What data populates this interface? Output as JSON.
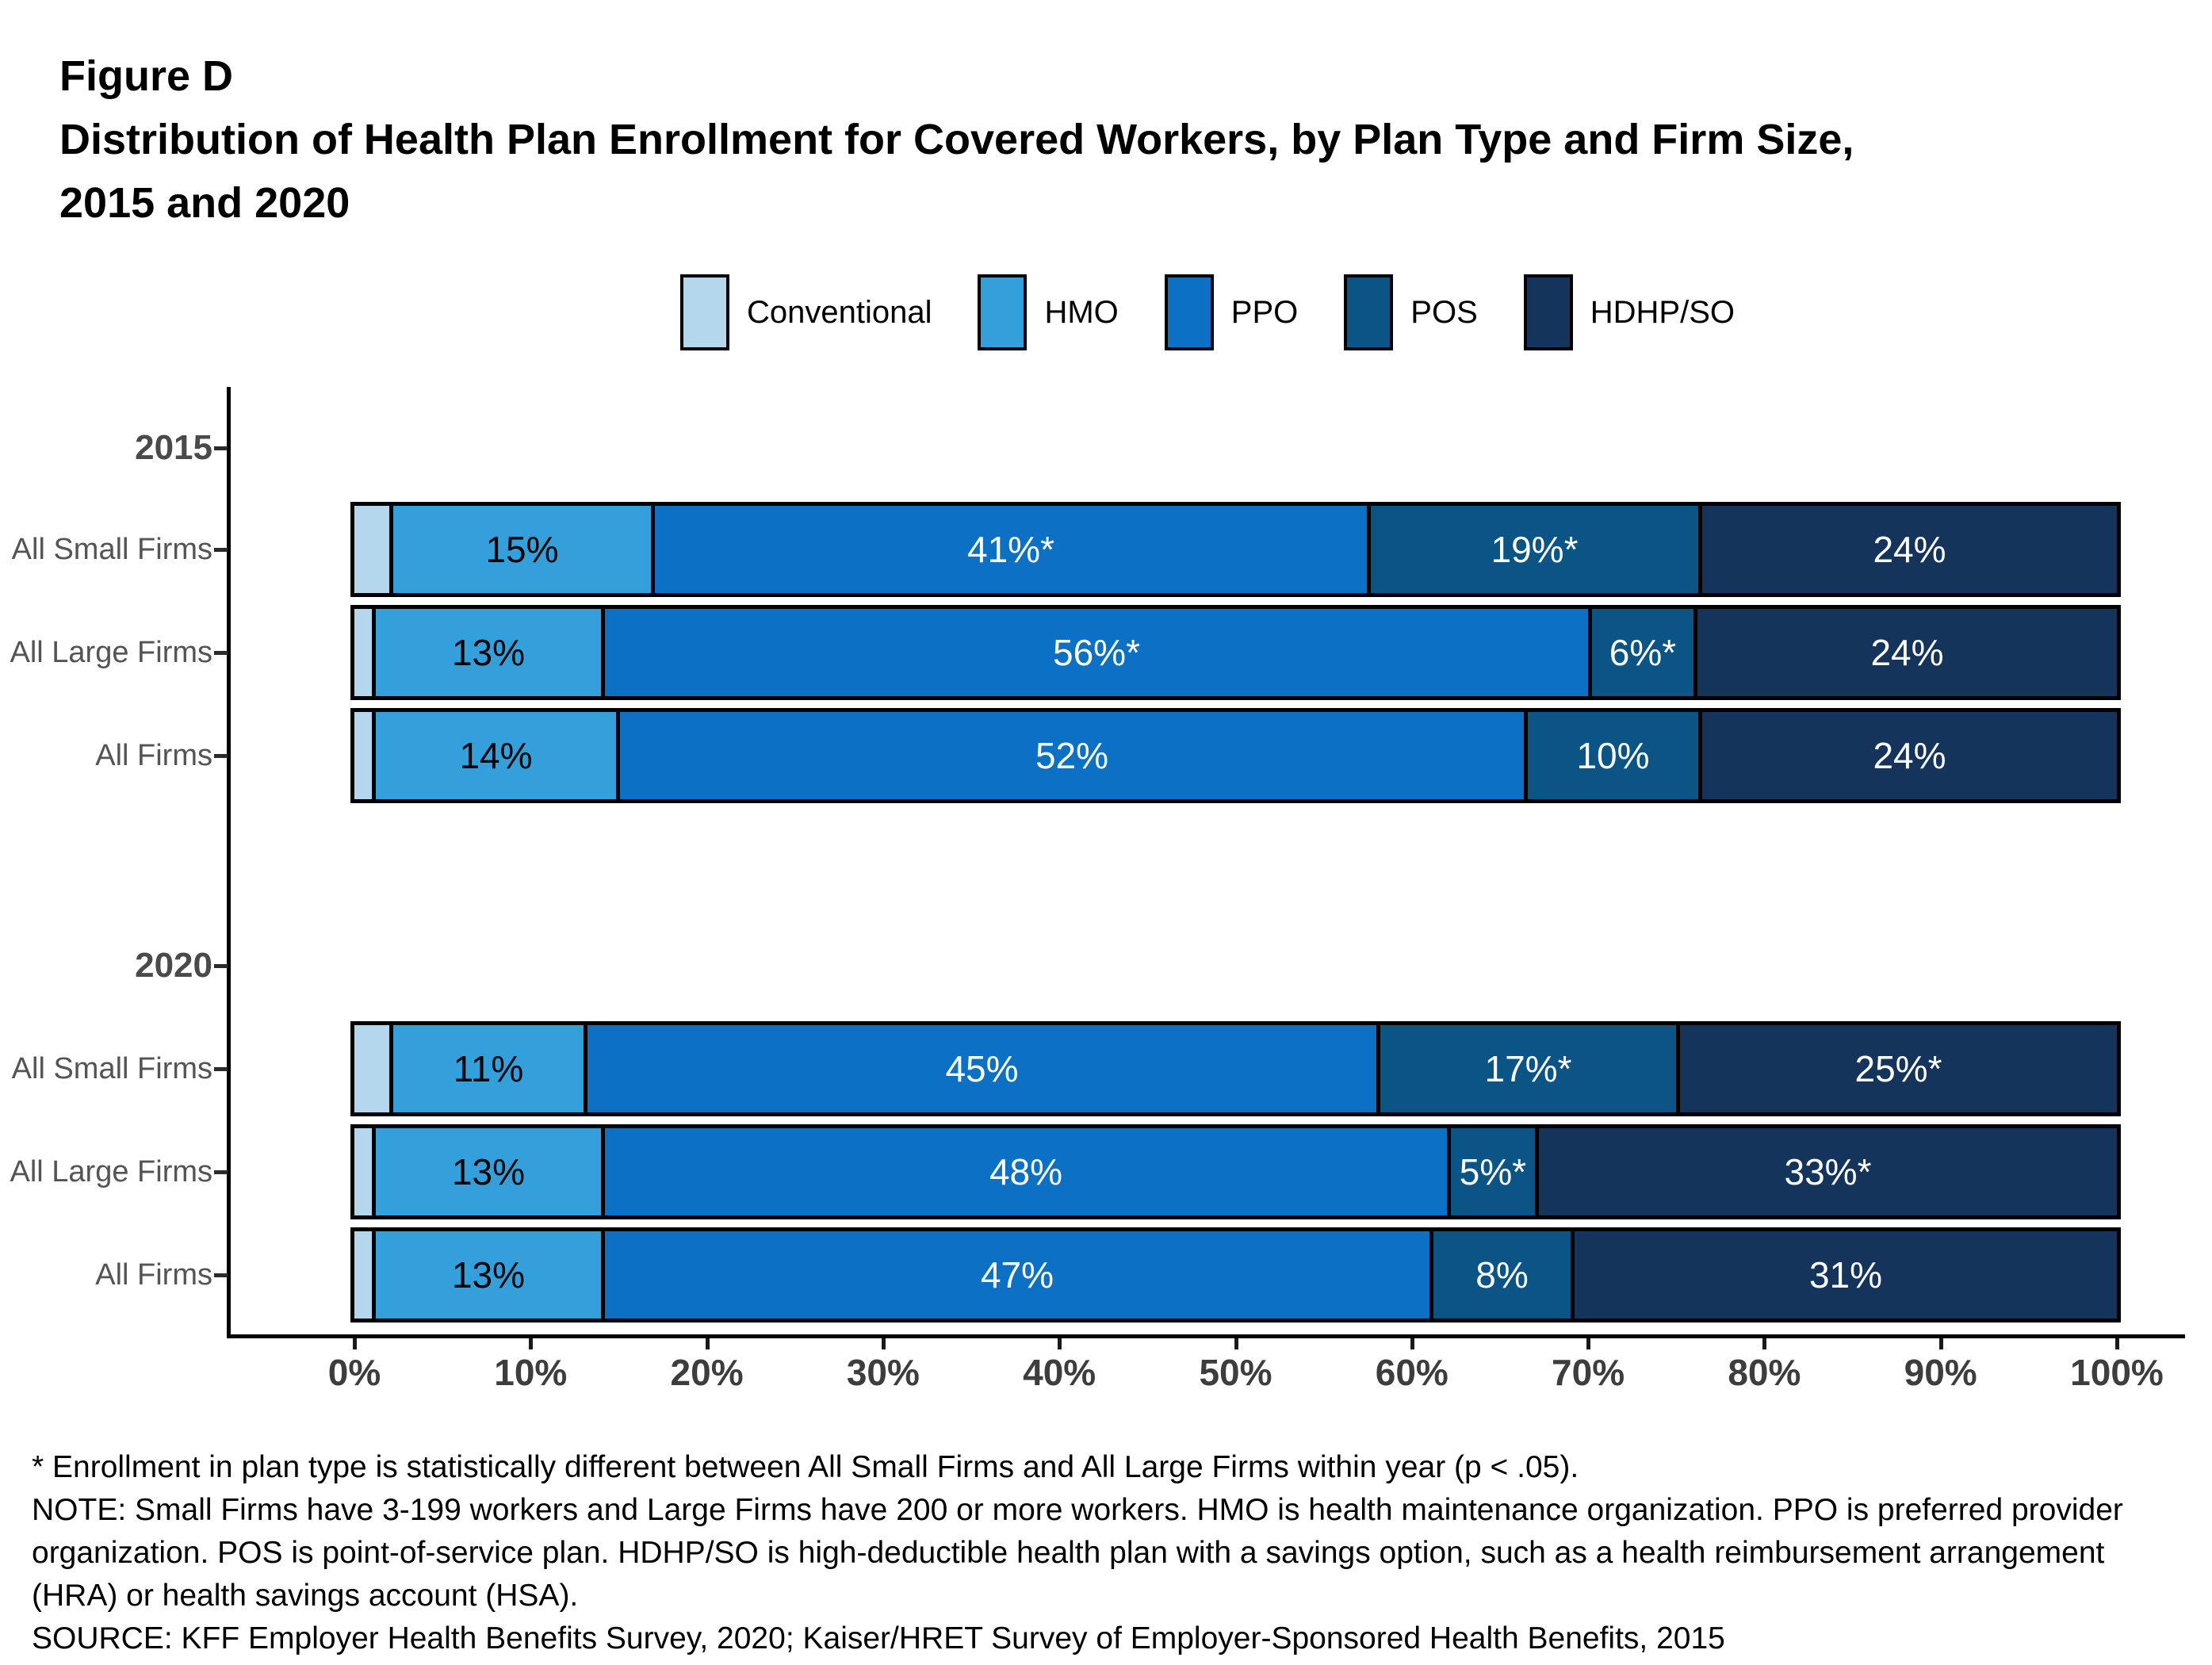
{
  "title": {
    "line1": "Figure D",
    "line2": "Distribution of Health Plan Enrollment for Covered Workers, by Plan Type and Firm Size,",
    "line3": "2015 and 2020"
  },
  "chart_data": {
    "type": "bar",
    "stacked": true,
    "orientation": "horizontal",
    "xlim": [
      0,
      100
    ],
    "x_tick_labels": [
      "0%",
      "10%",
      "20%",
      "30%",
      "40%",
      "50%",
      "60%",
      "70%",
      "80%",
      "90%",
      "100%"
    ],
    "grid": false,
    "legend_position": "top-center",
    "series": [
      {
        "name": "Conventional",
        "color": "#B4D7EE",
        "label_color": "#000000"
      },
      {
        "name": "HMO",
        "color": "#339FDB",
        "label_color": "#000000"
      },
      {
        "name": "PPO",
        "color": "#0C71C5",
        "label_color": "#ffffff"
      },
      {
        "name": "POS",
        "color": "#0A5486",
        "label_color": "#ffffff"
      },
      {
        "name": "HDHP/SO",
        "color": "#15345B",
        "label_color": "#ffffff"
      }
    ],
    "groups": [
      {
        "year": "2015",
        "rows": [
          {
            "label": "All Small Firms",
            "values": [
              2,
              15,
              41,
              19,
              24
            ],
            "value_labels": [
              "",
              "15%",
              "41%*",
              "19%*",
              "24%"
            ]
          },
          {
            "label": "All Large Firms",
            "values": [
              1,
              13,
              56,
              6,
              24
            ],
            "value_labels": [
              "",
              "13%",
              "56%*",
              "6%*",
              "24%"
            ]
          },
          {
            "label": "All Firms",
            "values": [
              1,
              14,
              52,
              10,
              24
            ],
            "value_labels": [
              "",
              "14%",
              "52%",
              "10%",
              "24%"
            ]
          }
        ]
      },
      {
        "year": "2020",
        "rows": [
          {
            "label": "All Small Firms",
            "values": [
              2,
              11,
              45,
              17,
              25
            ],
            "value_labels": [
              "",
              "11%",
              "45%",
              "17%*",
              "25%*"
            ]
          },
          {
            "label": "All Large Firms",
            "values": [
              1,
              13,
              48,
              5,
              33
            ],
            "value_labels": [
              "",
              "13%",
              "48%",
              "5%*",
              "33%*"
            ]
          },
          {
            "label": "All Firms",
            "values": [
              1,
              13,
              47,
              8,
              31
            ],
            "value_labels": [
              "",
              "13%",
              "47%",
              "8%",
              "31%"
            ]
          }
        ]
      }
    ]
  },
  "footnotes": [
    "* Enrollment in plan type is statistically different between All Small Firms and All Large Firms within year (p < .05).",
    "NOTE: Small Firms have 3-199 workers and Large Firms have 200 or more workers. HMO is health maintenance organization. PPO is preferred provider",
    "organization. POS is point-of-service plan. HDHP/SO is high-deductible health plan with a savings option, such as a health reimbursement arrangement",
    "(HRA) or health savings account (HSA).",
    "SOURCE: KFF Employer Health Benefits Survey, 2020; Kaiser/HRET Survey of Employer-Sponsored Health Benefits, 2015"
  ]
}
